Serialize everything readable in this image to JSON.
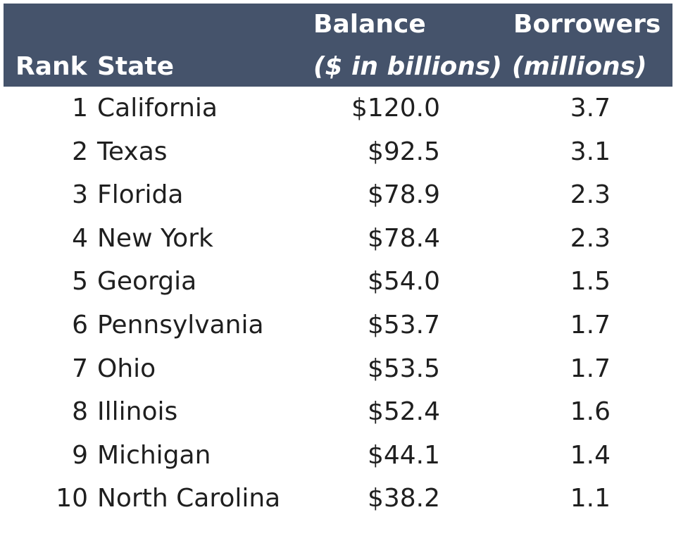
{
  "header": {
    "rank": "Rank",
    "state": "State",
    "balance_line1": "Balance",
    "balance_line2": "($ in billions)",
    "borrowers_line1": "Borrowers",
    "borrowers_line2": "(millions)"
  },
  "colors": {
    "header_bg": "#45536b",
    "header_text": "#ffffff",
    "body_text": "#1f1f1f"
  },
  "chart_data": {
    "type": "table",
    "columns": [
      "Rank",
      "State",
      "Balance ($ in billions)",
      "Borrowers (millions)"
    ],
    "rows": [
      {
        "rank": "1",
        "state": "California",
        "balance": "$120.0",
        "borrowers": "3.7"
      },
      {
        "rank": "2",
        "state": "Texas",
        "balance": "$92.5",
        "borrowers": "3.1"
      },
      {
        "rank": "3",
        "state": "Florida",
        "balance": "$78.9",
        "borrowers": "2.3"
      },
      {
        "rank": "4",
        "state": "New York",
        "balance": "$78.4",
        "borrowers": "2.3"
      },
      {
        "rank": "5",
        "state": "Georgia",
        "balance": "$54.0",
        "borrowers": "1.5"
      },
      {
        "rank": "6",
        "state": "Pennsylvania",
        "balance": "$53.7",
        "borrowers": "1.7"
      },
      {
        "rank": "7",
        "state": "Ohio",
        "balance": "$53.5",
        "borrowers": "1.7"
      },
      {
        "rank": "8",
        "state": "Illinois",
        "balance": "$52.4",
        "borrowers": "1.6"
      },
      {
        "rank": "9",
        "state": "Michigan",
        "balance": "$44.1",
        "borrowers": "1.4"
      },
      {
        "rank": "10",
        "state": "North Carolina",
        "balance": "$38.2",
        "borrowers": "1.1"
      }
    ]
  }
}
